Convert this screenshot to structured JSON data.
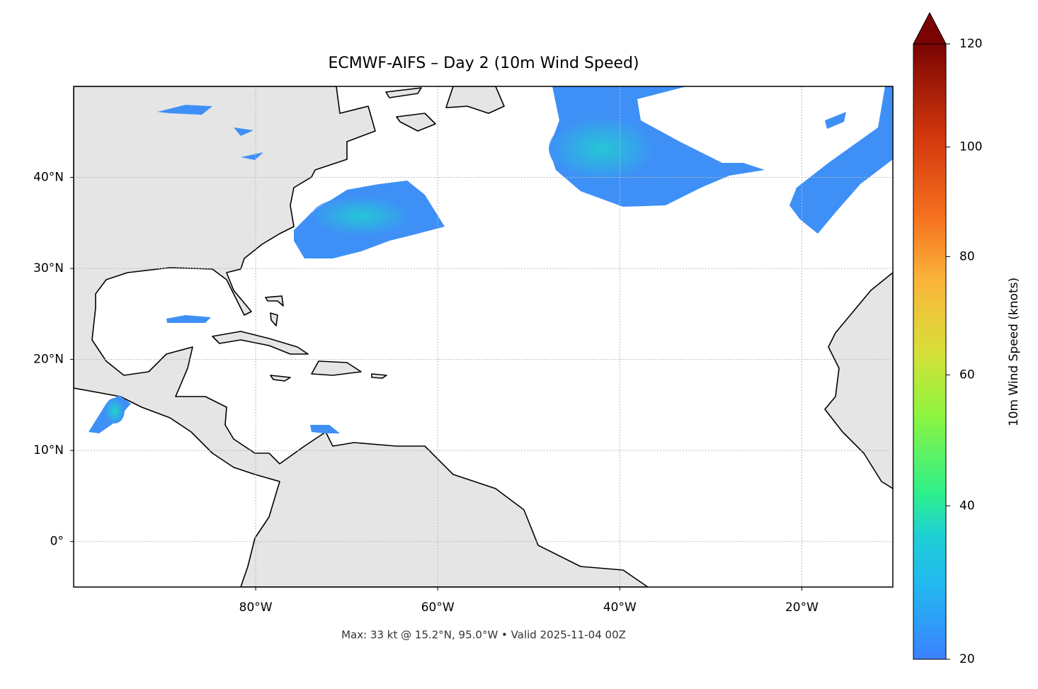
{
  "map": {
    "title": "ECMWF-AIFS – Day 2 (10m Wind Speed)",
    "footer": "Max: 33 kt @ 15.2°N, 95.0°W • Valid 2025-11-04 00Z",
    "xlim": [
      -100,
      -10
    ],
    "ylim": [
      -5,
      50
    ],
    "xticks": [
      {
        "value": -80,
        "label": "80°W"
      },
      {
        "value": -60,
        "label": "60°W"
      },
      {
        "value": -40,
        "label": "40°W"
      },
      {
        "value": -20,
        "label": "20°W"
      }
    ],
    "yticks": [
      {
        "value": 0,
        "label": "0°"
      },
      {
        "value": 10,
        "label": "10°N"
      },
      {
        "value": 20,
        "label": "20°N"
      },
      {
        "value": 30,
        "label": "30°N"
      },
      {
        "value": 40,
        "label": "40°N"
      }
    ],
    "grid": true
  },
  "colorbar": {
    "label": "10m Wind Speed (knots)",
    "clim": [
      20,
      120
    ],
    "ticks": [
      20,
      40,
      60,
      80,
      100,
      120
    ],
    "norm": "power",
    "extend": "max"
  }
}
